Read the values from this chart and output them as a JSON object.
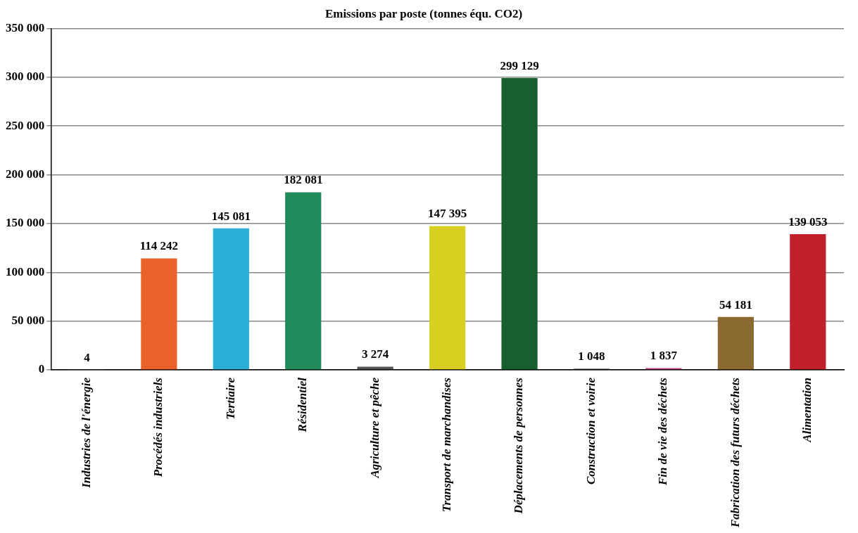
{
  "chart_data": {
    "type": "bar",
    "title": "Emissions par poste (tonnes équ. CO2)",
    "categories": [
      "Industries de l'énergie",
      "Procédés industriels",
      "Tertiaire",
      "Résidentiel",
      "Agriculture et pêche",
      "Transport de marchandises",
      "Déplacements de personnes",
      "Construction et voirie",
      "Fin de vie des déchets",
      "Fabrication des futurs déchets",
      "Alimentation"
    ],
    "values": [
      4,
      114242,
      145081,
      182081,
      3274,
      147395,
      299129,
      1048,
      1837,
      54181,
      139053
    ],
    "value_labels": [
      "4",
      "114 242",
      "145 081",
      "182 081",
      "3 274",
      "147 395",
      "299 129",
      "1 048",
      "1 837",
      "54 181",
      "139 053"
    ],
    "colors": [
      "#1a1a1a",
      "#e8622a",
      "#2ab0d8",
      "#1f8a5a",
      "#555555",
      "#d8d020",
      "#17602e",
      "#222222",
      "#c04080",
      "#8a6a30",
      "#c0202a"
    ],
    "ylim": [
      0,
      350000
    ],
    "yticks": [
      {
        "value": 0,
        "label": "0"
      },
      {
        "value": 50000,
        "label": "50 000"
      },
      {
        "value": 100000,
        "label": "100 000"
      },
      {
        "value": 150000,
        "label": "150 000"
      },
      {
        "value": 200000,
        "label": "200 000"
      },
      {
        "value": 250000,
        "label": "250 000"
      },
      {
        "value": 300000,
        "label": "300 000"
      },
      {
        "value": 350000,
        "label": "350 000"
      }
    ],
    "grid": "y"
  }
}
